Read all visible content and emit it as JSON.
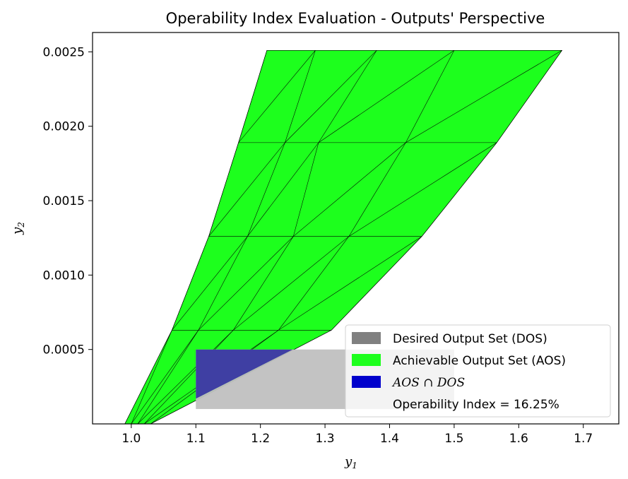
{
  "chart_data": {
    "type": "area",
    "title": "Operability Index Evaluation - Outputs' Perspective",
    "xlabel": "y",
    "xlabel_sub": "1",
    "ylabel": "y",
    "ylabel_sub": "2",
    "xlim": [
      0.94,
      1.755
    ],
    "ylim": [
      0.0,
      0.00263
    ],
    "x_ticks": [
      1.0,
      1.1,
      1.2,
      1.3,
      1.4,
      1.5,
      1.6,
      1.7
    ],
    "x_tick_labels": [
      "1.0",
      "1.1",
      "1.2",
      "1.3",
      "1.4",
      "1.5",
      "1.6",
      "1.7"
    ],
    "y_ticks": [
      0.0005,
      0.001,
      0.0015,
      0.002,
      0.0025
    ],
    "y_tick_labels": [
      "0.0005",
      "0.0010",
      "0.0015",
      "0.0020",
      "0.0025"
    ],
    "grid": false,
    "legend_position": "lower-right",
    "colors": {
      "dos": "#808080",
      "dos_fill": "#c0c0c0",
      "aos": "#1dff1d",
      "intersection": "#0000cc",
      "intersection_fill": "#3f3fa3",
      "mesh_edge": "#000000"
    },
    "series": [
      {
        "name": "Desired Output Set (DOS)",
        "kind": "rectangle",
        "x_range": [
          1.1,
          1.5
        ],
        "y_range": [
          0.0001,
          0.0005
        ]
      },
      {
        "name": "Achievable Output Set (AOS)",
        "kind": "triangulated-region",
        "outline": [
          [
            0.99,
            0.0
          ],
          [
            1.03,
            0.0
          ],
          [
            1.31,
            0.00063
          ],
          [
            1.45,
            0.00126
          ],
          [
            1.566,
            0.00189
          ],
          [
            1.667,
            0.00251
          ],
          [
            1.21,
            0.00251
          ],
          [
            1.166,
            0.00189
          ],
          [
            1.12,
            0.00126
          ],
          [
            1.063,
            0.00063
          ]
        ],
        "mesh_rows": [
          [
            [
              1.0,
              0.0
            ]
          ],
          [
            [
              1.063,
              0.00063
            ],
            [
              1.104,
              0.00063
            ],
            [
              1.158,
              0.00063
            ],
            [
              1.228,
              0.00063
            ],
            [
              1.31,
              0.00063
            ]
          ],
          [
            [
              1.12,
              0.00126
            ],
            [
              1.18,
              0.00126
            ],
            [
              1.251,
              0.00126
            ],
            [
              1.337,
              0.00126
            ],
            [
              1.45,
              0.00126
            ]
          ],
          [
            [
              1.166,
              0.00189
            ],
            [
              1.238,
              0.00189
            ],
            [
              1.29,
              0.00189
            ],
            [
              1.425,
              0.00189
            ],
            [
              1.566,
              0.00189
            ]
          ],
          [
            [
              1.21,
              0.00251
            ],
            [
              1.285,
              0.00251
            ],
            [
              1.38,
              0.00251
            ],
            [
              1.5,
              0.00251
            ],
            [
              1.667,
              0.00251
            ]
          ]
        ],
        "fan_points": [
          [
            0.99,
            0.0
          ],
          [
            1.0,
            0.0
          ],
          [
            1.01,
            0.0
          ],
          [
            1.02,
            0.0
          ],
          [
            1.03,
            0.0
          ]
        ]
      },
      {
        "name": "AOS ∩ DOS",
        "kind": "polygon",
        "points": [
          [
            1.1,
            0.0001
          ],
          [
            1.1,
            0.0005
          ],
          [
            1.25,
            0.0005
          ],
          [
            1.1,
            0.00017
          ]
        ]
      }
    ],
    "legend": [
      {
        "label": "Desired Output Set (DOS)",
        "swatch": "dos"
      },
      {
        "label": "Achievable Output Set (AOS)",
        "swatch": "aos"
      },
      {
        "label": "AOS ∩ DOS",
        "swatch": "intersection",
        "italic": true
      },
      {
        "label": "Operability Index = 16.25%",
        "swatch": "none"
      }
    ]
  }
}
